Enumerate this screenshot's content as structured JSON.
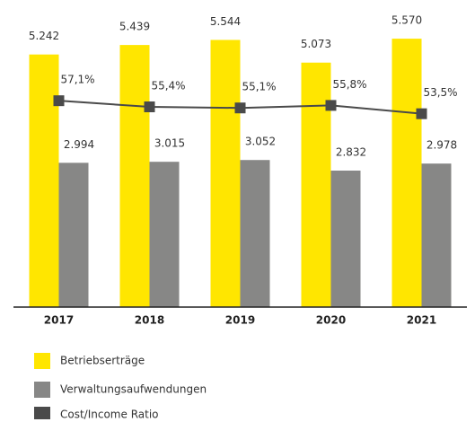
{
  "chart_data": {
    "type": "bar_line",
    "categories": [
      "2017",
      "2018",
      "2019",
      "2020",
      "2021"
    ],
    "series": [
      {
        "name": "Betriebserträge",
        "type": "bar",
        "color": "#ffe600",
        "values": [
          5242,
          5439,
          5544,
          5073,
          5570
        ],
        "value_labels": [
          "5.242",
          "5.439",
          "5.544",
          "5.073",
          "5.570"
        ]
      },
      {
        "name": "Verwaltungsaufwendungen",
        "type": "bar",
        "color": "#878786",
        "values": [
          2994,
          3015,
          3052,
          2832,
          2978
        ],
        "value_labels": [
          "2.994",
          "3.015",
          "3.052",
          "2.832",
          "2.978"
        ]
      },
      {
        "name": "Cost/Income Ratio",
        "type": "line",
        "axis": "y2",
        "color": "#4a4a4a",
        "values": [
          57.1,
          55.4,
          55.1,
          55.8,
          53.5
        ],
        "value_labels": [
          "57,1%",
          "55,4%",
          "55,1%",
          "55,8%",
          "53,5%"
        ]
      }
    ],
    "ylim": [
      0,
      6000
    ],
    "y2lim": [
      0,
      80
    ],
    "legend": "bottom"
  }
}
